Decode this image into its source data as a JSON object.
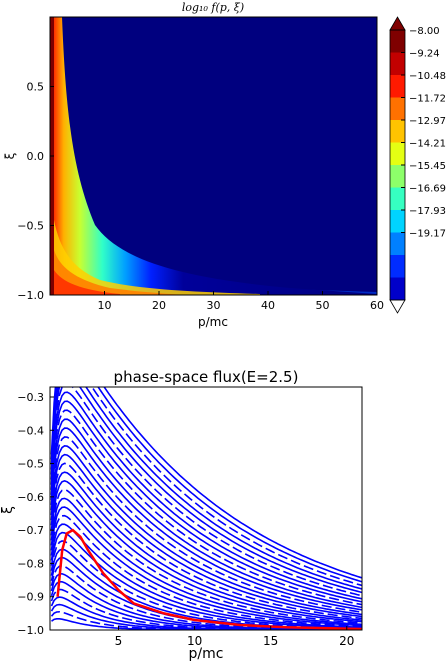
{
  "chart_data": [
    {
      "type": "heatmap",
      "title": "log₁₀ f(p, ξ)",
      "xlabel": "p/mc",
      "ylabel": "ξ",
      "xlim": [
        0,
        60
      ],
      "ylim": [
        -1.0,
        1.0
      ],
      "x_ticks": [
        10,
        20,
        30,
        40,
        50,
        60
      ],
      "y_ticks": [
        -1.0,
        -0.5,
        0.0,
        0.5
      ],
      "colorbar": {
        "labels": [
          "-8.00",
          "-9.24",
          "-10.48",
          "-11.72",
          "-12.97",
          "-14.21",
          "-15.45",
          "-16.69",
          "-17.93",
          "-19.17"
        ],
        "colors": [
          "#7f0000",
          "#c20000",
          "#ff1a00",
          "#ff7100",
          "#ffc300",
          "#e4ff13",
          "#8dff6a",
          "#36ffc1",
          "#00d4ff",
          "#0080ff",
          "#002cff",
          "#0000c9"
        ],
        "extend": "both"
      },
      "background_color": "#00007f"
    },
    {
      "type": "line",
      "title": "phase-space flux(E=2.5)",
      "xlabel": "p/mc",
      "ylabel": "ξ",
      "xlim": [
        0.5,
        21
      ],
      "ylim": [
        -1.0,
        -0.27
      ],
      "x_ticks": [
        5,
        10,
        15,
        20
      ],
      "y_ticks": [
        -1.0,
        -0.9,
        -0.8,
        -0.7,
        -0.6,
        -0.5,
        -0.4,
        -0.3
      ],
      "series": [
        {
          "color": "#0000ff",
          "style": "streamlines"
        },
        {
          "color": "#ff0000",
          "style": "separatrix",
          "x": [
            1.0,
            1.3,
            1.6,
            2.0,
            2.5,
            3.0,
            4.0,
            5.0,
            6.0,
            8.0,
            10.0,
            13.0,
            16.0,
            21.0
          ],
          "y": [
            -0.9,
            -0.76,
            -0.71,
            -0.7,
            -0.72,
            -0.76,
            -0.83,
            -0.88,
            -0.92,
            -0.95,
            -0.97,
            -0.985,
            -0.992,
            -0.997
          ]
        }
      ]
    }
  ]
}
